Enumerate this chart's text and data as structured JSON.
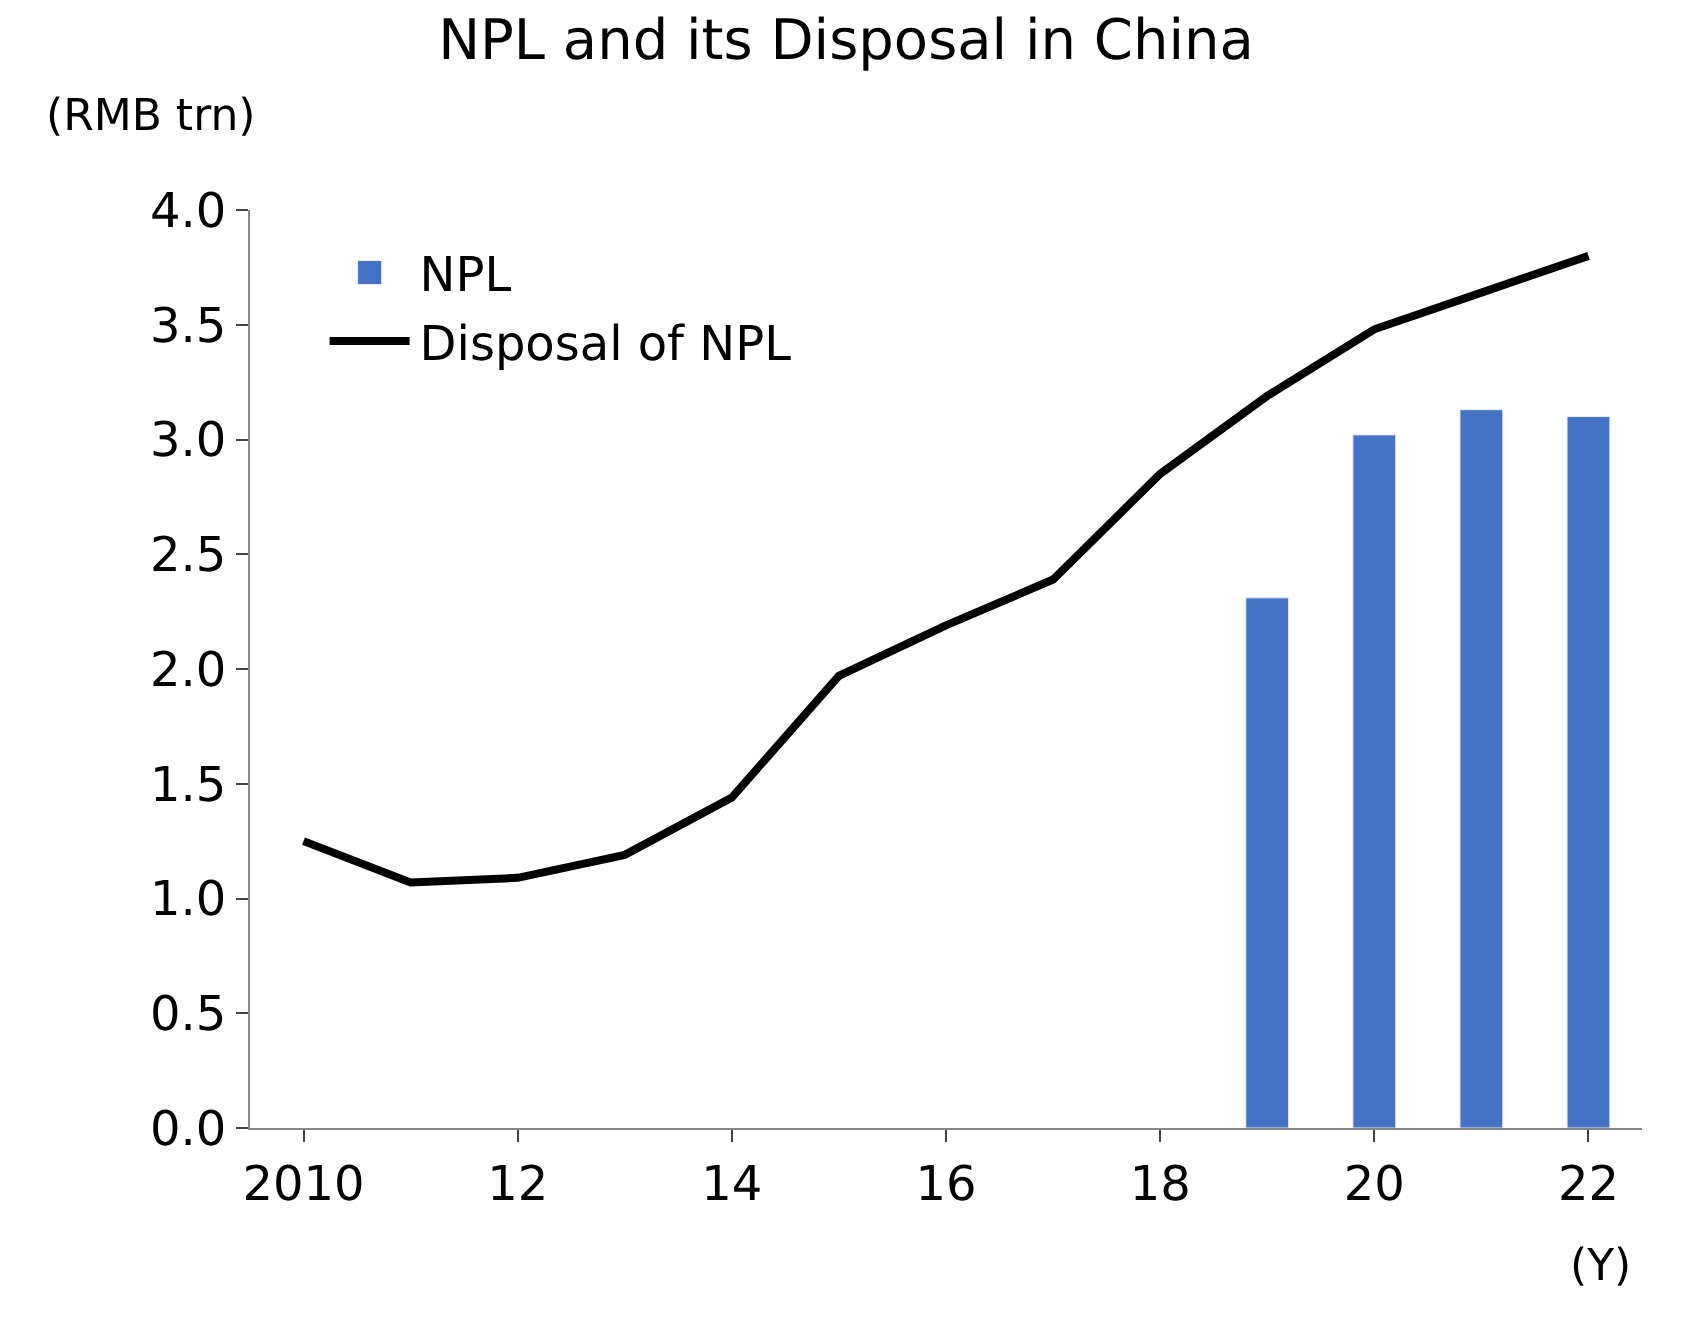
{
  "chart_data": {
    "type": "bar",
    "title": "NPL and its Disposal in China",
    "ylabel": "(RMB trn)",
    "xlabel": "(Y)",
    "categories": [
      "2010",
      null,
      "12",
      null,
      "14",
      null,
      "16",
      null,
      "18",
      null,
      "20",
      null,
      "22"
    ],
    "series": [
      {
        "name": "NPL",
        "color": "#4472c4",
        "values": [
          null,
          null,
          null,
          null,
          null,
          null,
          null,
          null,
          null,
          2.31,
          3.02,
          3.13,
          3.1
        ]
      },
      {
        "name": "Disposal of NPL",
        "type": "line",
        "color": "#000000",
        "values": [
          1.25,
          1.07,
          1.09,
          1.19,
          1.44,
          1.97,
          2.19,
          2.39,
          2.85,
          3.19,
          3.48,
          3.64,
          3.8
        ]
      }
    ],
    "ylim": [
      0,
      4.0
    ],
    "yticks": [
      {
        "value": 0,
        "label": "0.0"
      },
      0.5,
      {
        "value": 1,
        "label": "1.0"
      },
      1.5,
      {
        "value": 2,
        "label": "2.0"
      },
      2.5,
      {
        "value": 3,
        "label": "3.0"
      },
      3.5,
      {
        "value": 4,
        "label": "4.0"
      }
    ],
    "legend": "top left",
    "marker": "none"
  }
}
